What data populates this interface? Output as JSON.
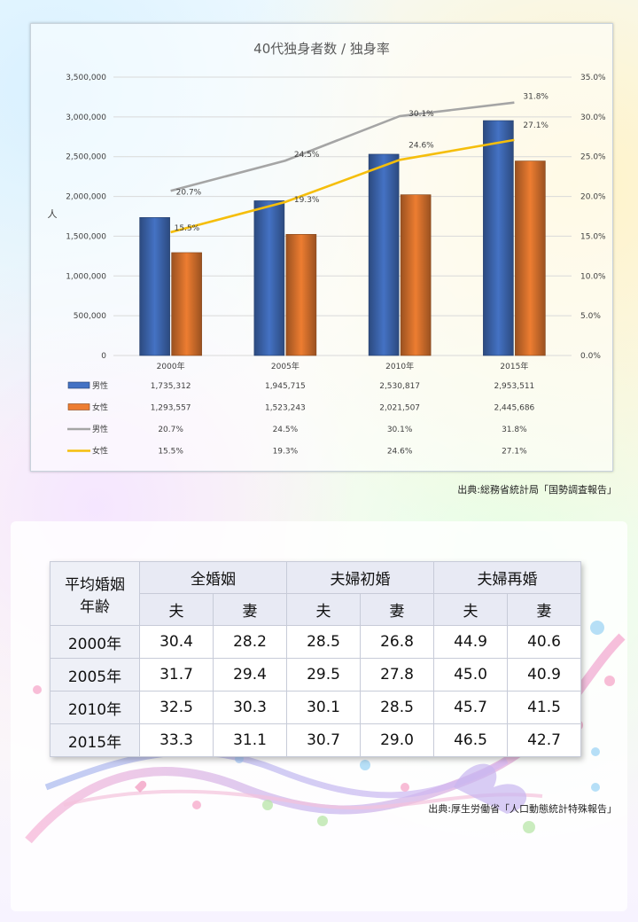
{
  "chart_data": {
    "type": "bar",
    "title": "40代独身者数 / 独身率",
    "ylabel": "人",
    "categories": [
      "2000年",
      "2005年",
      "2010年",
      "2015年"
    ],
    "ylim": [
      0,
      3500000
    ],
    "y_ticks": [
      "0",
      "500,000",
      "1,000,000",
      "1,500,000",
      "2,000,000",
      "2,500,000",
      "3,000,000",
      "3,500,000"
    ],
    "y2lim": [
      0,
      35
    ],
    "y2_ticks": [
      "0.0%",
      "5.0%",
      "10.0%",
      "15.0%",
      "20.0%",
      "25.0%",
      "30.0%",
      "35.0%"
    ],
    "grid": true,
    "bar_series": [
      {
        "name": "男性",
        "color": "#4472c4",
        "values": [
          1735312,
          1945715,
          2530817,
          2953511
        ],
        "labels": [
          "1,735,312",
          "1,945,715",
          "2,530,817",
          "2,953,511"
        ]
      },
      {
        "name": "女性",
        "color": "#ed7d31",
        "values": [
          1293557,
          1523243,
          2021507,
          2445686
        ],
        "labels": [
          "1,293,557",
          "1,523,243",
          "2,021,507",
          "2,445,686"
        ]
      }
    ],
    "line_series": [
      {
        "name": "男性",
        "color": "#a5a5a5",
        "values": [
          20.7,
          24.5,
          30.1,
          31.8
        ],
        "labels": [
          "20.7%",
          "24.5%",
          "30.1%",
          "31.8%"
        ]
      },
      {
        "name": "女性",
        "color": "#f5be0b",
        "values": [
          15.5,
          19.3,
          24.6,
          27.1
        ],
        "labels": [
          "15.5%",
          "19.3%",
          "24.6%",
          "27.1%"
        ]
      }
    ],
    "legend": "data-table-bottom"
  },
  "chart_source": "出典:総務省統計局「国勢調査報告」",
  "table": {
    "corner_header": [
      "平均婚姻",
      "年齢"
    ],
    "groups": [
      "全婚姻",
      "夫婦初婚",
      "夫婦再婚"
    ],
    "sub_headers": [
      "夫",
      "妻",
      "夫",
      "妻",
      "夫",
      "妻"
    ],
    "rows": [
      {
        "year": "2000年",
        "values": [
          "30.4",
          "28.2",
          "28.5",
          "26.8",
          "44.9",
          "40.6"
        ]
      },
      {
        "year": "2005年",
        "values": [
          "31.7",
          "29.4",
          "29.5",
          "27.8",
          "45.0",
          "40.9"
        ]
      },
      {
        "year": "2010年",
        "values": [
          "32.5",
          "30.3",
          "30.1",
          "28.5",
          "45.7",
          "41.5"
        ]
      },
      {
        "year": "2015年",
        "values": [
          "33.3",
          "31.1",
          "30.7",
          "29.0",
          "46.5",
          "42.7"
        ]
      }
    ]
  },
  "table_source": "出典:厚生労働省「人口動態統計特殊報告」"
}
